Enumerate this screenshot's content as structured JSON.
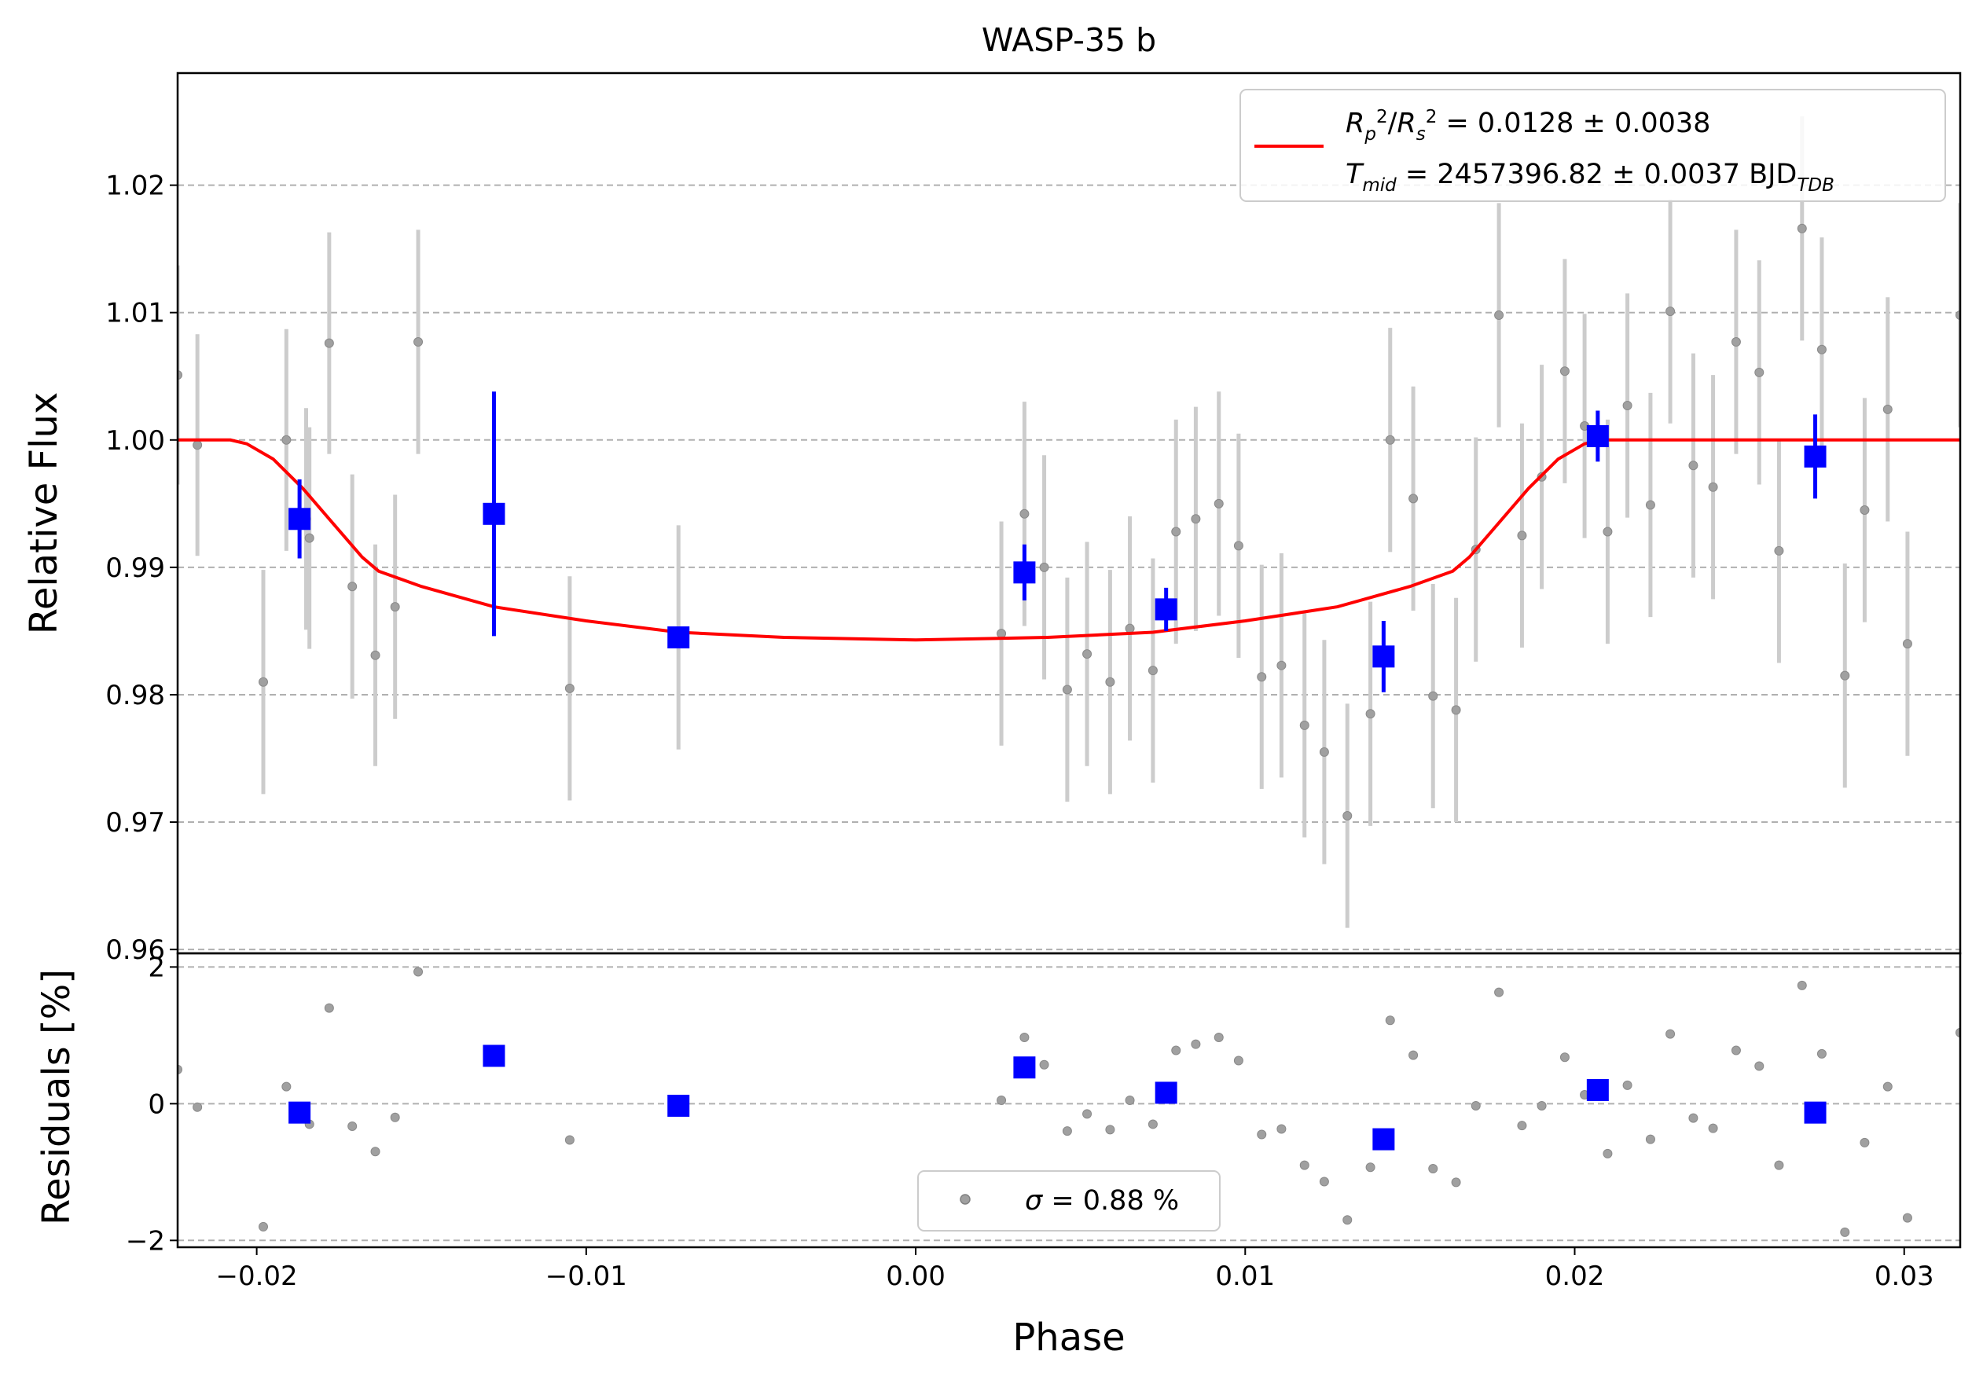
{
  "chart_data": [
    {
      "panel": "main",
      "type": "scatter",
      "title": "WASP-35 b",
      "xlabel": "Phase",
      "ylabel": "Relative Flux",
      "xlim": [
        -0.0224,
        0.0317
      ],
      "ylim": [
        0.9597,
        1.0288
      ],
      "xticks": [
        -0.02,
        -0.01,
        0.0,
        0.01,
        0.02,
        0.03
      ],
      "xtick_labels": [
        "−0.02",
        "−0.01",
        "0.00",
        "0.01",
        "0.02",
        "0.03"
      ],
      "yticks": [
        0.96,
        0.97,
        0.98,
        0.99,
        1.0,
        1.01,
        1.02
      ],
      "ytick_labels": [
        "0.96",
        "0.97",
        "0.98",
        "0.99",
        "1.00",
        "1.01",
        "1.02"
      ],
      "grid": "horizontal dashed",
      "legend_position": "top-right",
      "legend": {
        "rp_rs": "0.0128 ± 0.0038",
        "tmid": "2457396.82 ± 0.0037 BJD",
        "tmid_subscript": "TDB"
      },
      "colors": {
        "raw": "#a0a0a0",
        "raw_err": "#cccccc",
        "binned": "#0000ff",
        "model": "#ff0000"
      },
      "raw_points": [
        [
          -0.0224,
          1.0051,
          0.0086
        ],
        [
          -0.0218,
          0.9996,
          0.0087
        ],
        [
          -0.0198,
          0.981,
          0.0088
        ],
        [
          -0.0191,
          1.0,
          0.0087
        ],
        [
          -0.0185,
          0.9938,
          0.0087
        ],
        [
          -0.0184,
          0.9923,
          0.0087
        ],
        [
          -0.0178,
          1.0076,
          0.0087
        ],
        [
          -0.0171,
          0.9885,
          0.0088
        ],
        [
          -0.0164,
          0.9831,
          0.0087
        ],
        [
          -0.0158,
          0.9869,
          0.0088
        ],
        [
          -0.0151,
          1.0077,
          0.0088
        ],
        [
          -0.0105,
          0.9805,
          0.0088
        ],
        [
          -0.0072,
          0.9845,
          0.0088
        ],
        [
          0.0026,
          0.9848,
          0.0088
        ],
        [
          0.0033,
          0.9942,
          0.0088
        ],
        [
          0.0039,
          0.99,
          0.0088
        ],
        [
          0.0046,
          0.9804,
          0.0088
        ],
        [
          0.0052,
          0.9832,
          0.0088
        ],
        [
          0.0059,
          0.981,
          0.0088
        ],
        [
          0.0065,
          0.9852,
          0.0088
        ],
        [
          0.0072,
          0.9819,
          0.0088
        ],
        [
          0.0079,
          0.9928,
          0.0088
        ],
        [
          0.0085,
          0.9938,
          0.0088
        ],
        [
          0.0092,
          0.995,
          0.0088
        ],
        [
          0.0098,
          0.9917,
          0.0088
        ],
        [
          0.0105,
          0.9814,
          0.0088
        ],
        [
          0.0111,
          0.9823,
          0.0088
        ],
        [
          0.0118,
          0.9776,
          0.0088
        ],
        [
          0.0124,
          0.9755,
          0.0088
        ],
        [
          0.0131,
          0.9705,
          0.0088
        ],
        [
          0.0138,
          0.9785,
          0.0088
        ],
        [
          0.0144,
          1.0,
          0.0088
        ],
        [
          0.0151,
          0.9954,
          0.0088
        ],
        [
          0.0157,
          0.9799,
          0.0088
        ],
        [
          0.0164,
          0.9788,
          0.0088
        ],
        [
          0.017,
          0.9914,
          0.0088
        ],
        [
          0.0177,
          1.0098,
          0.0088
        ],
        [
          0.0184,
          0.9925,
          0.0088
        ],
        [
          0.019,
          0.9971,
          0.0088
        ],
        [
          0.0197,
          1.0054,
          0.0088
        ],
        [
          0.0203,
          1.0011,
          0.0088
        ],
        [
          0.021,
          0.9928,
          0.0088
        ],
        [
          0.0216,
          1.0027,
          0.0088
        ],
        [
          0.0223,
          0.9949,
          0.0088
        ],
        [
          0.0229,
          1.0101,
          0.0088
        ],
        [
          0.0236,
          0.998,
          0.0088
        ],
        [
          0.0242,
          0.9963,
          0.0088
        ],
        [
          0.0249,
          1.0077,
          0.0088
        ],
        [
          0.0256,
          1.0053,
          0.0088
        ],
        [
          0.0262,
          0.9913,
          0.0088
        ],
        [
          0.0269,
          1.0166,
          0.0088
        ],
        [
          0.0275,
          1.0071,
          0.0088
        ],
        [
          0.0282,
          0.9815,
          0.0088
        ],
        [
          0.0288,
          0.9945,
          0.0088
        ],
        [
          0.0295,
          1.0024,
          0.0088
        ],
        [
          0.0301,
          0.984,
          0.0088
        ],
        [
          0.0317,
          1.0098,
          0.0088
        ]
      ],
      "binned_points": [
        [
          -0.0187,
          0.9938,
          0.0031
        ],
        [
          -0.0128,
          0.9942,
          0.0096
        ],
        [
          -0.0072,
          0.9845,
          0.0008
        ],
        [
          0.0033,
          0.9896,
          0.0022
        ],
        [
          0.0076,
          0.9867,
          0.0017
        ],
        [
          0.0142,
          0.983,
          0.0028
        ],
        [
          0.0207,
          1.0003,
          0.002
        ],
        [
          0.0273,
          0.9987,
          0.0033
        ]
      ],
      "model": {
        "x": [
          -0.0224,
          -0.0208,
          -0.0203,
          -0.0195,
          -0.0186,
          -0.0177,
          -0.0168,
          -0.0163,
          -0.015,
          -0.0128,
          -0.01,
          -0.0072,
          -0.004,
          0.0,
          0.004,
          0.0072,
          0.01,
          0.0128,
          0.015,
          0.0163,
          0.0168,
          0.0177,
          0.0186,
          0.0195,
          0.0203,
          0.0208,
          0.0317
        ],
        "y": [
          1.0,
          1.0,
          0.9997,
          0.9985,
          0.9962,
          0.9935,
          0.9908,
          0.9897,
          0.9885,
          0.9869,
          0.9858,
          0.9849,
          0.9845,
          0.9843,
          0.9845,
          0.9849,
          0.9858,
          0.9869,
          0.9885,
          0.9897,
          0.9908,
          0.9935,
          0.9962,
          0.9985,
          0.9997,
          1.0,
          1.0
        ]
      }
    },
    {
      "panel": "residuals",
      "type": "scatter",
      "xlabel": "Phase",
      "ylabel": "Residuals [%]",
      "xlim": [
        -0.0224,
        0.0317
      ],
      "ylim": [
        -2.1,
        2.2
      ],
      "yticks": [
        -2,
        0,
        2
      ],
      "ytick_labels": [
        "−2",
        "0",
        "2"
      ],
      "grid": "horizontal dashed",
      "legend_position": "bottom-center",
      "legend": {
        "sigma": "= 0.88 %"
      },
      "raw_points": [
        [
          -0.0224,
          0.5
        ],
        [
          -0.0218,
          -0.05
        ],
        [
          -0.0198,
          -1.8
        ],
        [
          -0.0191,
          0.25
        ],
        [
          -0.0184,
          -0.3
        ],
        [
          -0.0178,
          1.4
        ],
        [
          -0.0171,
          -0.33
        ],
        [
          -0.0164,
          -0.7
        ],
        [
          -0.0158,
          -0.2
        ],
        [
          -0.0151,
          1.93
        ],
        [
          -0.0105,
          -0.53
        ],
        [
          0.0026,
          0.05
        ],
        [
          0.0033,
          0.97
        ],
        [
          0.0039,
          0.57
        ],
        [
          0.0046,
          -0.4
        ],
        [
          0.0052,
          -0.15
        ],
        [
          0.0059,
          -0.38
        ],
        [
          0.0065,
          0.05
        ],
        [
          0.0072,
          -0.3
        ],
        [
          0.0079,
          0.78
        ],
        [
          0.0085,
          0.87
        ],
        [
          0.0092,
          0.97
        ],
        [
          0.0098,
          0.63
        ],
        [
          0.0105,
          -0.45
        ],
        [
          0.0111,
          -0.37
        ],
        [
          0.0118,
          -0.9
        ],
        [
          0.0124,
          -1.14
        ],
        [
          0.0131,
          -1.7
        ],
        [
          0.0138,
          -0.93
        ],
        [
          0.0144,
          1.22
        ],
        [
          0.0151,
          0.71
        ],
        [
          0.0157,
          -0.95
        ],
        [
          0.0164,
          -1.15
        ],
        [
          0.017,
          -0.03
        ],
        [
          0.0177,
          1.63
        ],
        [
          0.0184,
          -0.32
        ],
        [
          0.019,
          -0.03
        ],
        [
          0.0197,
          0.68
        ],
        [
          0.0203,
          0.13
        ],
        [
          0.021,
          -0.73
        ],
        [
          0.0216,
          0.27
        ],
        [
          0.0223,
          -0.52
        ],
        [
          0.0229,
          1.02
        ],
        [
          0.0236,
          -0.21
        ],
        [
          0.0242,
          -0.36
        ],
        [
          0.0249,
          0.78
        ],
        [
          0.0256,
          0.55
        ],
        [
          0.0262,
          -0.9
        ],
        [
          0.0269,
          1.73
        ],
        [
          0.0275,
          0.73
        ],
        [
          0.0282,
          -1.88
        ],
        [
          0.0288,
          -0.57
        ],
        [
          0.0295,
          0.25
        ],
        [
          0.0301,
          -1.67
        ],
        [
          0.0317,
          1.04
        ]
      ],
      "binned_points": [
        [
          -0.0187,
          -0.13
        ],
        [
          -0.0128,
          0.7
        ],
        [
          -0.0072,
          -0.03
        ],
        [
          0.0033,
          0.53
        ],
        [
          0.0076,
          0.16
        ],
        [
          0.0142,
          -0.52
        ],
        [
          0.0207,
          0.2
        ],
        [
          0.0273,
          -0.13
        ]
      ]
    }
  ]
}
